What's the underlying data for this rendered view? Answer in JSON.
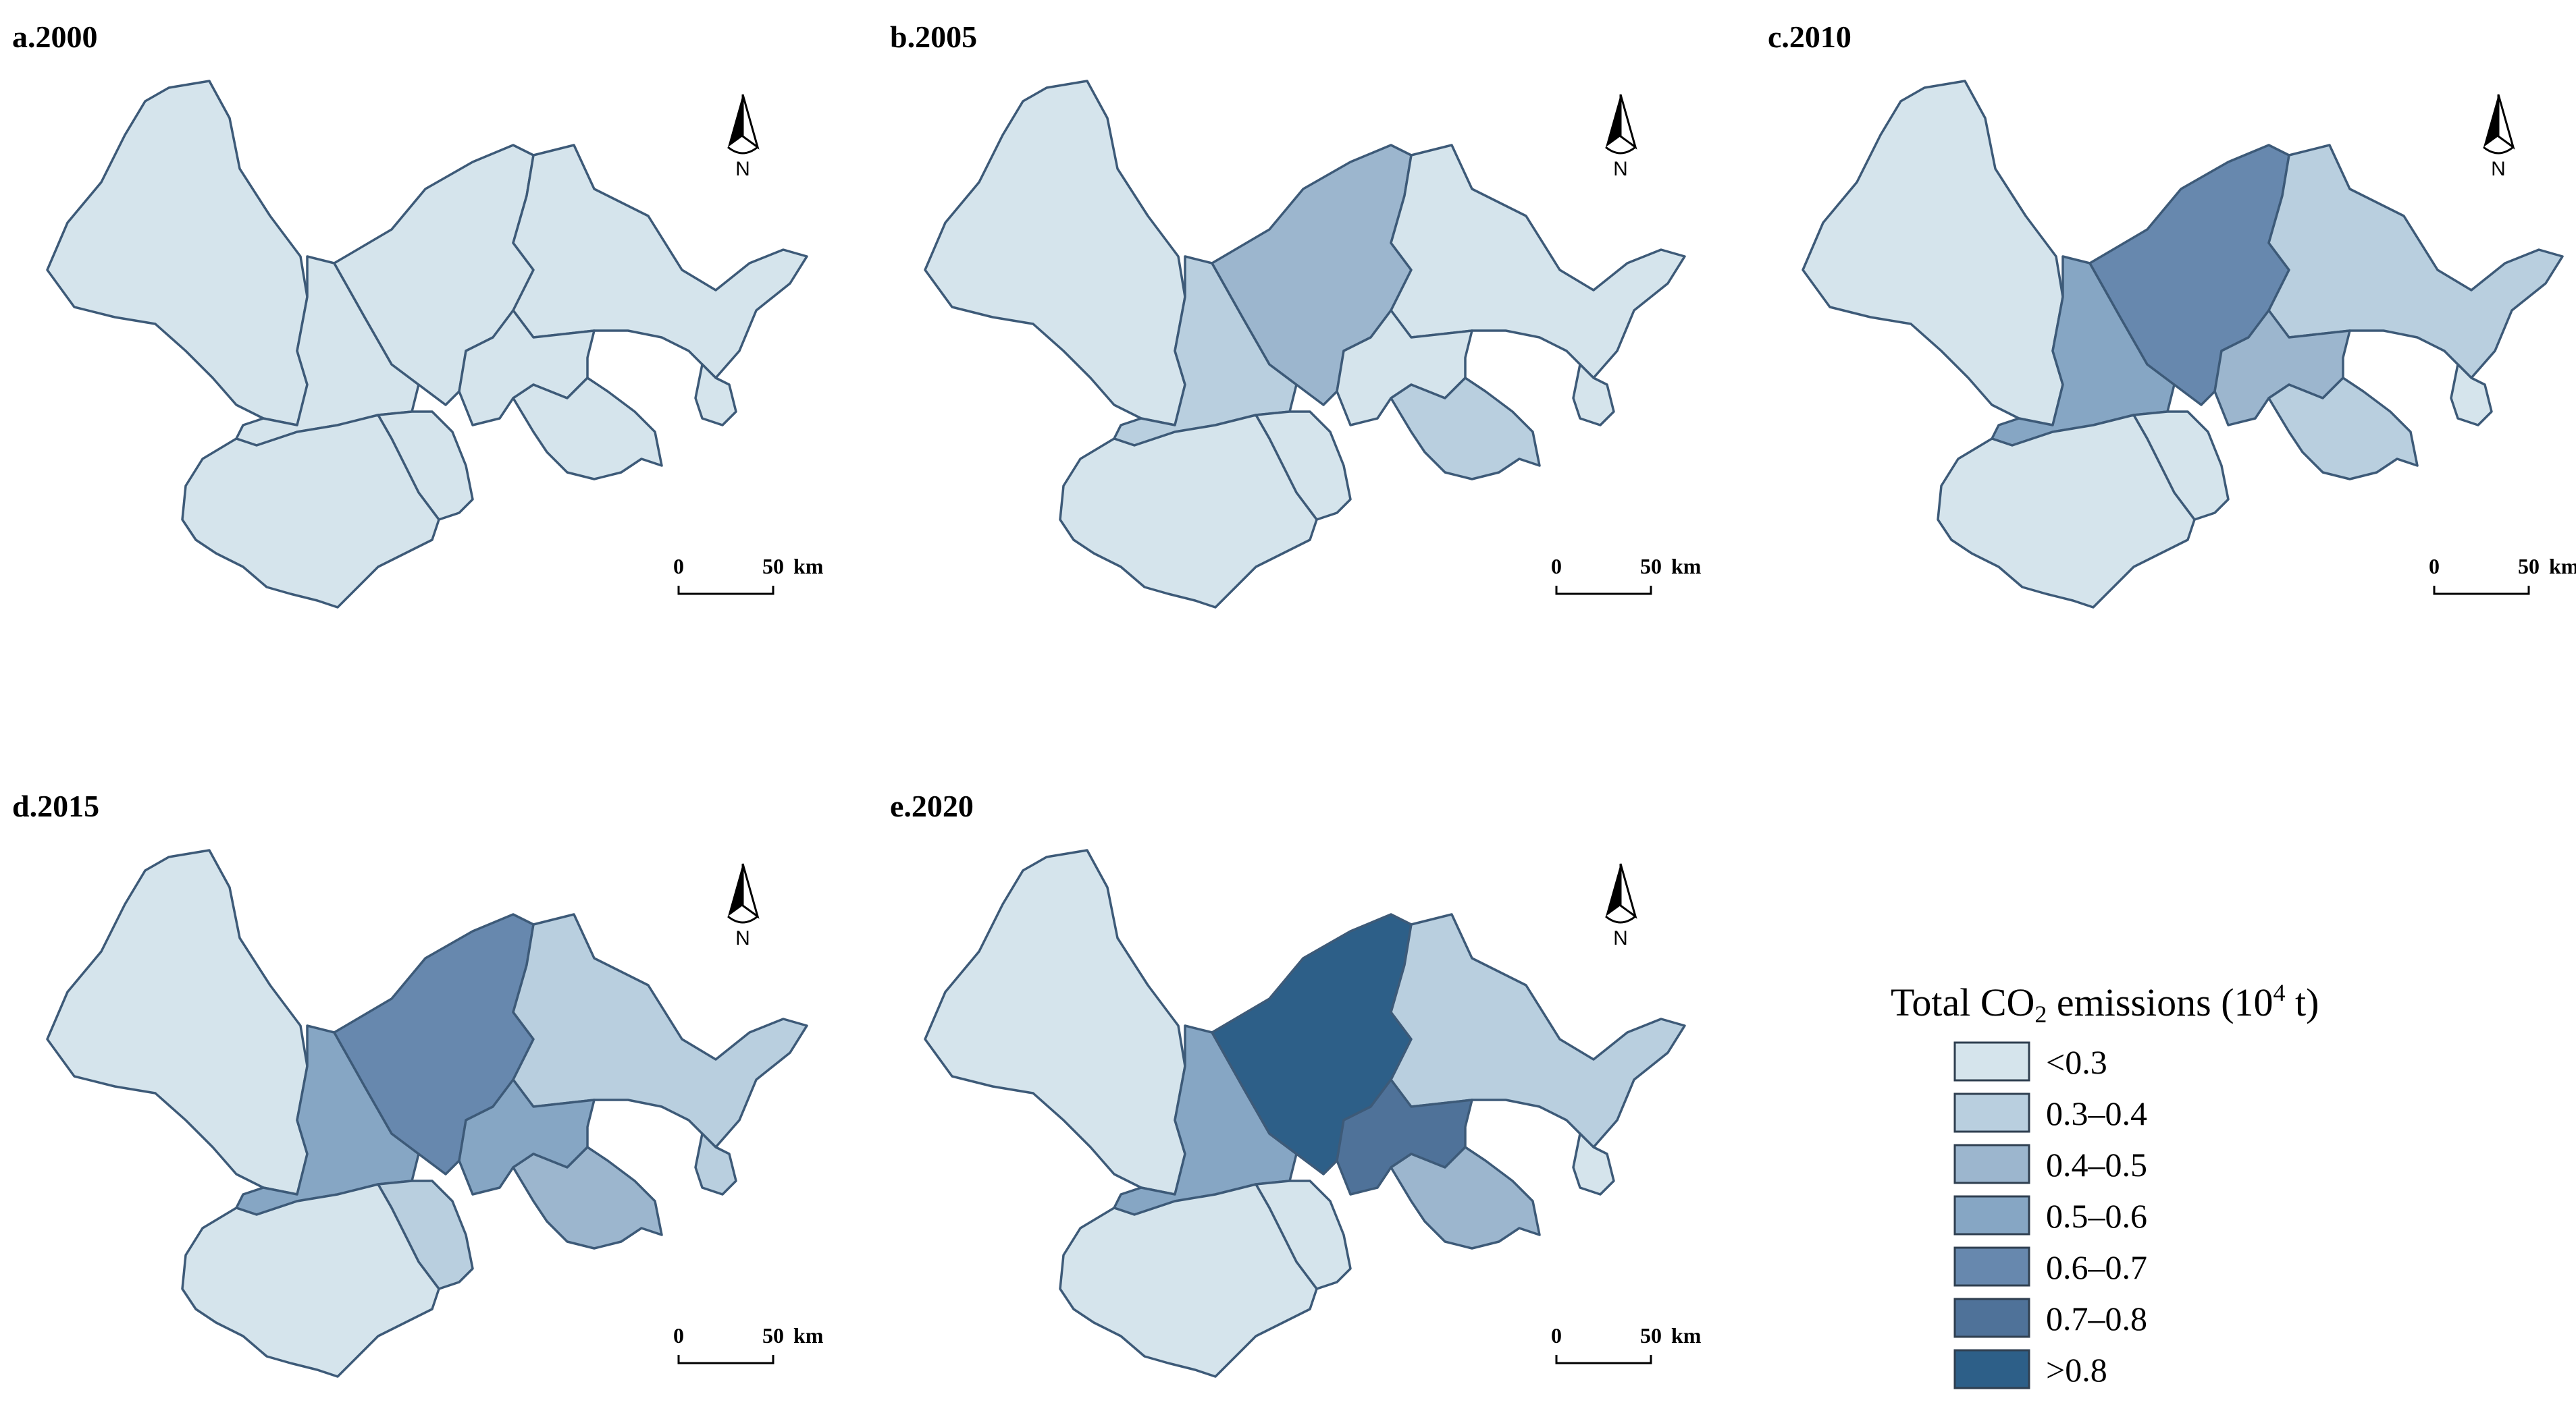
{
  "panels": [
    {
      "label": "a.2000",
      "classes": [
        0,
        0,
        0,
        0,
        0,
        0,
        0,
        0,
        0
      ]
    },
    {
      "label": "b.2005",
      "classes": [
        0,
        1,
        2,
        0,
        0,
        1,
        0,
        0,
        0
      ]
    },
    {
      "label": "c.2010",
      "classes": [
        0,
        3,
        4,
        1,
        2,
        1,
        0,
        0,
        0
      ]
    },
    {
      "label": "d.2015",
      "classes": [
        0,
        3,
        4,
        1,
        3,
        2,
        1,
        1,
        0
      ]
    },
    {
      "label": "e.2020",
      "classes": [
        0,
        3,
        6,
        1,
        5,
        2,
        0,
        0,
        0
      ]
    }
  ],
  "scale_bar": {
    "zero": "0",
    "fifty": "50",
    "unit": "km"
  },
  "north_arrow": {
    "letter": "N"
  },
  "legend": {
    "title_prefix": "Total CO",
    "title_sub": "2",
    "title_middle": " emissions (10",
    "title_sup": "4",
    "title_suffix": " t)",
    "classes": [
      {
        "label": "<0.3",
        "color": "#d5e4ec"
      },
      {
        "label": "0.3–0.4",
        "color": "#b9cfdf"
      },
      {
        "label": "0.4–0.5",
        "color": "#9cb6ce"
      },
      {
        "label": "0.5–0.6",
        "color": "#86a6c4"
      },
      {
        "label": "0.6–0.7",
        "color": "#6788ae"
      },
      {
        "label": "0.7–0.8",
        "color": "#4f7299"
      },
      {
        "label": ">0.8",
        "color": "#2d5f88"
      }
    ]
  }
}
